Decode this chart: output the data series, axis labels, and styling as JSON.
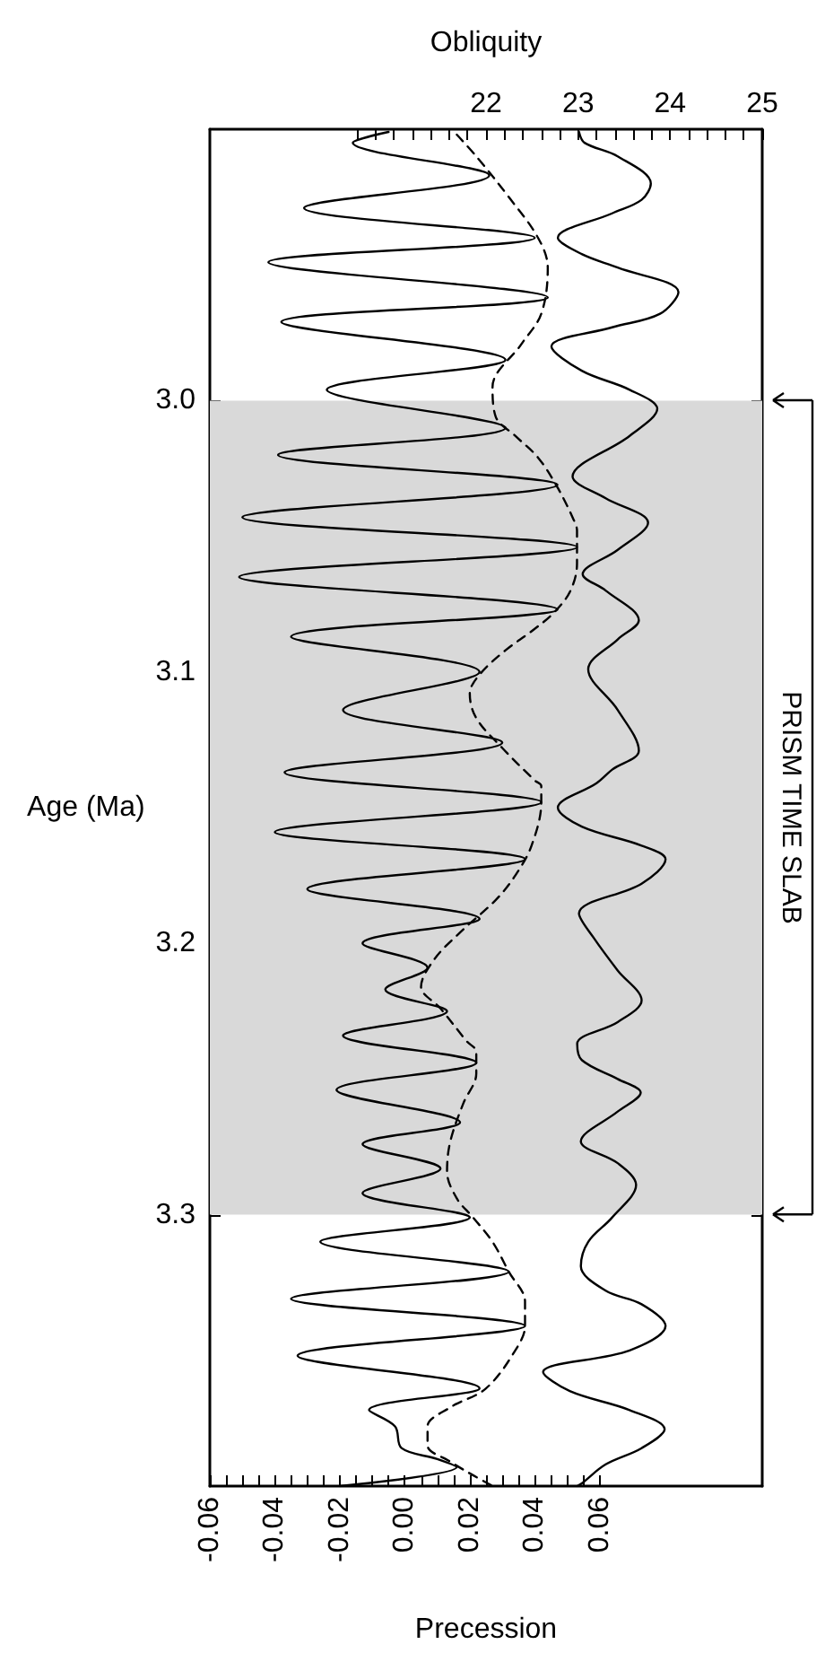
{
  "chart_data": {
    "type": "line",
    "xlabel": "Precession",
    "x2label": "Obliquity",
    "ylabel": "Age (Ma)",
    "xlim": [
      -0.06,
      0.11
    ],
    "xticks": [
      -0.06,
      {
        "value": -0.055,
        "label": null
      },
      {
        "value": -0.05,
        "label": null
      },
      {
        "value": -0.045,
        "label": null
      },
      -0.04,
      {
        "value": -0.035,
        "label": null
      },
      {
        "value": -0.03,
        "label": null
      },
      {
        "value": -0.025,
        "label": null
      },
      -0.02,
      {
        "value": -0.015,
        "label": null
      },
      {
        "value": -0.01,
        "label": null
      },
      {
        "value": -0.005,
        "label": null
      },
      {
        "value": 0,
        "label": "0.00"
      },
      {
        "value": 0.005,
        "label": null
      },
      {
        "value": 0.01,
        "label": null
      },
      {
        "value": 0.015,
        "label": null
      },
      0.02,
      {
        "value": 0.025,
        "label": null
      },
      {
        "value": 0.03,
        "label": null
      },
      {
        "value": 0.035,
        "label": null
      },
      0.04,
      {
        "value": 0.045,
        "label": null
      },
      {
        "value": 0.05,
        "label": null
      },
      {
        "value": 0.055,
        "label": null
      },
      0.06
    ],
    "x2lim": [
      19,
      25
    ],
    "x2ticks": [
      {
        "value": 20.6,
        "label": null
      },
      {
        "value": 20.8,
        "label": null
      },
      {
        "value": 21,
        "label": null
      },
      {
        "value": 21.2,
        "label": null
      },
      {
        "value": 21.4,
        "label": null
      },
      {
        "value": 21.6,
        "label": null
      },
      {
        "value": 21.8,
        "label": null
      },
      22,
      {
        "value": 22.2,
        "label": null
      },
      {
        "value": 22.4,
        "label": null
      },
      {
        "value": 22.6,
        "label": null
      },
      {
        "value": 22.8,
        "label": null
      },
      23,
      {
        "value": 23.2,
        "label": null
      },
      {
        "value": 23.4,
        "label": null
      },
      {
        "value": 23.6,
        "label": null
      },
      {
        "value": 23.8,
        "label": null
      },
      24,
      {
        "value": 24.2,
        "label": null
      },
      {
        "value": 24.4,
        "label": null
      },
      {
        "value": 24.6,
        "label": null
      },
      {
        "value": 24.8,
        "label": null
      },
      25
    ],
    "ylim": [
      3.4,
      2.9
    ],
    "yticks": [
      {
        "value": 3,
        "label": "3.0"
      },
      3.1,
      3.2,
      3.3
    ],
    "grid": false,
    "marker": "none",
    "bands": [
      {
        "axis": "y",
        "from": 3.0,
        "to": 3.3,
        "label": "PRISM TIME SLAB",
        "color": "#d9d9d9"
      }
    ],
    "series": [
      {
        "color": "#000000",
        "line_style": "solid",
        "x": [
          -0.005,
          -0.016,
          0.026,
          -0.031,
          0.04,
          -0.042,
          0.044,
          -0.038,
          0.031,
          -0.024,
          0.031,
          -0.039,
          0.047,
          -0.05,
          0.053,
          -0.051,
          0.047,
          -0.035,
          0.023,
          -0.019,
          0.03,
          -0.037,
          0.042,
          -0.04,
          0.037,
          -0.03,
          0.023,
          -0.013,
          0.007,
          -0.006,
          0.013,
          -0.019,
          0.022,
          -0.021,
          0.017,
          -0.013,
          0.011,
          -0.013,
          0.02,
          -0.026,
          0.032,
          -0.035,
          0.037,
          -0.033,
          0.023,
          -0.011,
          -0.003,
          -0.001,
          0.01,
          0.016,
          -0.02
        ],
        "values": [
          2.901,
          2.905,
          2.917,
          2.929,
          2.94,
          2.949,
          2.962,
          2.971,
          2.985,
          2.996,
          3.01,
          3.02,
          3.031,
          3.043,
          3.054,
          3.065,
          3.077,
          3.087,
          3.1,
          3.114,
          3.126,
          3.137,
          3.148,
          3.159,
          3.169,
          3.18,
          3.191,
          3.2,
          3.209,
          3.217,
          3.225,
          3.234,
          3.244,
          3.254,
          3.266,
          3.274,
          3.283,
          3.292,
          3.301,
          3.31,
          3.321,
          3.331,
          3.341,
          3.352,
          3.364,
          3.372,
          3.378,
          3.386,
          3.39,
          3.393,
          3.4
        ]
      },
      {
        "color": "#000000",
        "line_style": "dashed",
        "x": [
          0.016,
          0.022,
          0.032,
          0.041,
          0.044,
          0.042,
          0.036,
          0.027,
          0.028,
          0.034,
          0.041,
          0.047,
          0.052,
          0.053,
          0.053,
          0.051,
          0.046,
          0.039,
          0.031,
          0.023,
          0.02,
          0.022,
          0.03,
          0.04,
          0.042,
          0.042,
          0.039,
          0.034,
          0.028,
          0.017,
          0.009,
          0.005,
          0.011,
          0.019,
          0.022,
          0.022,
          0.018,
          0.014,
          0.013,
          0.016,
          0.021,
          0.027,
          0.032,
          0.037,
          0.037,
          0.034,
          0.025,
          0.014,
          0.007,
          0.007,
          0.014,
          0.021,
          0.027
        ],
        "values": [
          2.902,
          2.91,
          2.925,
          2.94,
          2.951,
          2.968,
          2.979,
          2.995,
          3.006,
          3.013,
          3.021,
          3.032,
          3.044,
          3.048,
          3.06,
          3.07,
          3.078,
          3.085,
          3.092,
          3.101,
          3.108,
          3.117,
          3.128,
          3.14,
          3.142,
          3.148,
          3.164,
          3.175,
          3.184,
          3.196,
          3.206,
          3.216,
          3.224,
          3.236,
          3.24,
          3.248,
          3.259,
          3.273,
          3.284,
          3.294,
          3.301,
          3.31,
          3.321,
          3.332,
          3.341,
          3.35,
          3.364,
          3.371,
          3.378,
          3.385,
          3.391,
          3.396,
          3.4
        ]
      },
      {
        "color": "#000000",
        "line_style": "solid",
        "axis": "x2",
        "x": [
          23.01,
          23.07,
          23.43,
          23.79,
          23.69,
          23.37,
          22.78,
          23.04,
          23.43,
          24.09,
          23.89,
          23.37,
          22.71,
          23.04,
          23.56,
          23.86,
          23.56,
          22.94,
          23.3,
          23.76,
          23.43,
          23.05,
          23.3,
          23.66,
          23.43,
          23.11,
          23.43,
          23.66,
          23.37,
          23.2,
          22.78,
          23.04,
          23.69,
          23.95,
          23.69,
          23.01,
          23.17,
          23.43,
          23.69,
          23.43,
          22.99,
          23.04,
          23.43,
          23.68,
          23.43,
          23.03,
          23.43,
          23.63,
          23.37,
          23.11,
          23.03,
          23.3,
          23.69,
          23.95,
          23.56,
          22.62,
          22.91,
          23.56,
          23.94,
          23.69,
          23.3,
          23.04,
          22.99
        ],
        "values": [
          2.901,
          2.905,
          2.91,
          2.92,
          2.926,
          2.931,
          2.94,
          2.946,
          2.951,
          2.96,
          2.968,
          2.973,
          2.98,
          2.989,
          2.996,
          3.003,
          3.013,
          3.028,
          3.036,
          3.045,
          3.055,
          3.064,
          3.07,
          3.081,
          3.088,
          3.099,
          3.114,
          3.129,
          3.136,
          3.141,
          3.15,
          3.157,
          3.164,
          3.169,
          3.178,
          3.189,
          3.198,
          3.21,
          3.221,
          3.229,
          3.237,
          3.243,
          3.25,
          3.255,
          3.262,
          3.273,
          3.281,
          3.289,
          3.301,
          3.31,
          3.319,
          3.328,
          3.333,
          3.341,
          3.35,
          3.358,
          3.365,
          3.372,
          3.379,
          3.386,
          3.392,
          3.399,
          3.4
        ]
      }
    ]
  }
}
